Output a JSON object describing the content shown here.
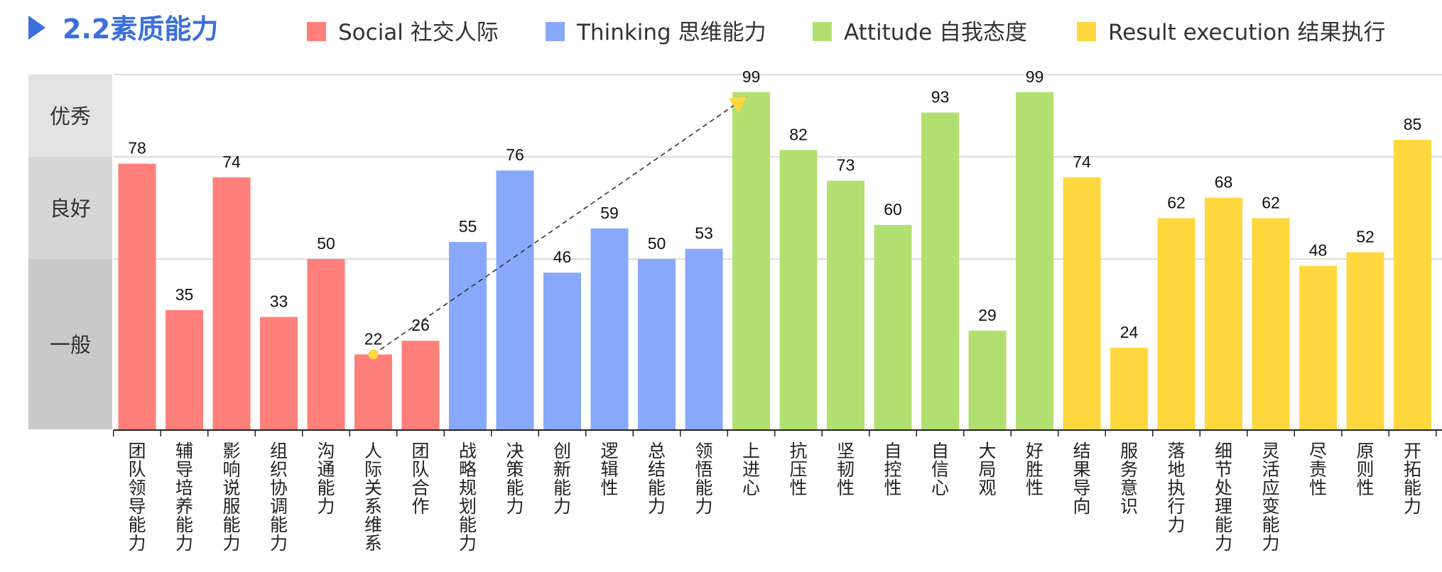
{
  "title": "2.2素质能力",
  "colors": {
    "accent": "#3b6fdc",
    "Social": "#ff7f7a",
    "Thinking": "#88a9fb",
    "Attitude": "#b1e071",
    "Result": "#ffd83f",
    "marker": "#ffd83f"
  },
  "legend": [
    {
      "key": "Social",
      "label": "Social 社交人际"
    },
    {
      "key": "Thinking",
      "label": "Thinking 思维能力"
    },
    {
      "key": "Attitude",
      "label": "Attitude 自我态度"
    },
    {
      "key": "Result",
      "label": "Result execution 结果执行"
    }
  ],
  "bands": [
    {
      "label": "优秀",
      "from": 80,
      "to": 100,
      "color": "#e3e3e3"
    },
    {
      "label": "良好",
      "from": 50,
      "to": 80,
      "color": "#d6d6d6"
    },
    {
      "label": "一般",
      "from": 0,
      "to": 50,
      "color": "#c9c9c9"
    }
  ],
  "chart_data": {
    "type": "bar",
    "title": "2.2素质能力",
    "xlabel": "",
    "ylabel": "",
    "ylim": [
      0,
      100
    ],
    "grid": true,
    "legend_position": "top",
    "categories": [
      "团队领导能力",
      "辅导培养能力",
      "影响说服能力",
      "组织协调能力",
      "沟通能力",
      "人际关系维系",
      "团队合作",
      "战略规划能力",
      "决策能力",
      "创新能力",
      "逻辑性",
      "总结能力",
      "领悟能力",
      "上进心",
      "抗压性",
      "坚韧性",
      "自控性",
      "自信心",
      "大局观",
      "好胜性",
      "结果导向",
      "服务意识",
      "落地执行力",
      "细节处理能力",
      "灵活应变能力",
      "尽责性",
      "原则性",
      "开拓能力"
    ],
    "values": [
      78,
      35,
      74,
      33,
      50,
      22,
      26,
      55,
      76,
      46,
      59,
      50,
      53,
      99,
      82,
      73,
      60,
      93,
      29,
      99,
      74,
      24,
      62,
      68,
      62,
      48,
      52,
      85
    ],
    "groups": [
      "Social",
      "Social",
      "Social",
      "Social",
      "Social",
      "Social",
      "Social",
      "Thinking",
      "Thinking",
      "Thinking",
      "Thinking",
      "Thinking",
      "Thinking",
      "Attitude",
      "Attitude",
      "Attitude",
      "Attitude",
      "Attitude",
      "Attitude",
      "Attitude",
      "Result",
      "Result",
      "Result",
      "Result",
      "Result",
      "Result",
      "Result",
      "Result"
    ],
    "annotation": {
      "type": "arrow",
      "from_category": "人际关系维系",
      "to_category": "上进心"
    }
  }
}
